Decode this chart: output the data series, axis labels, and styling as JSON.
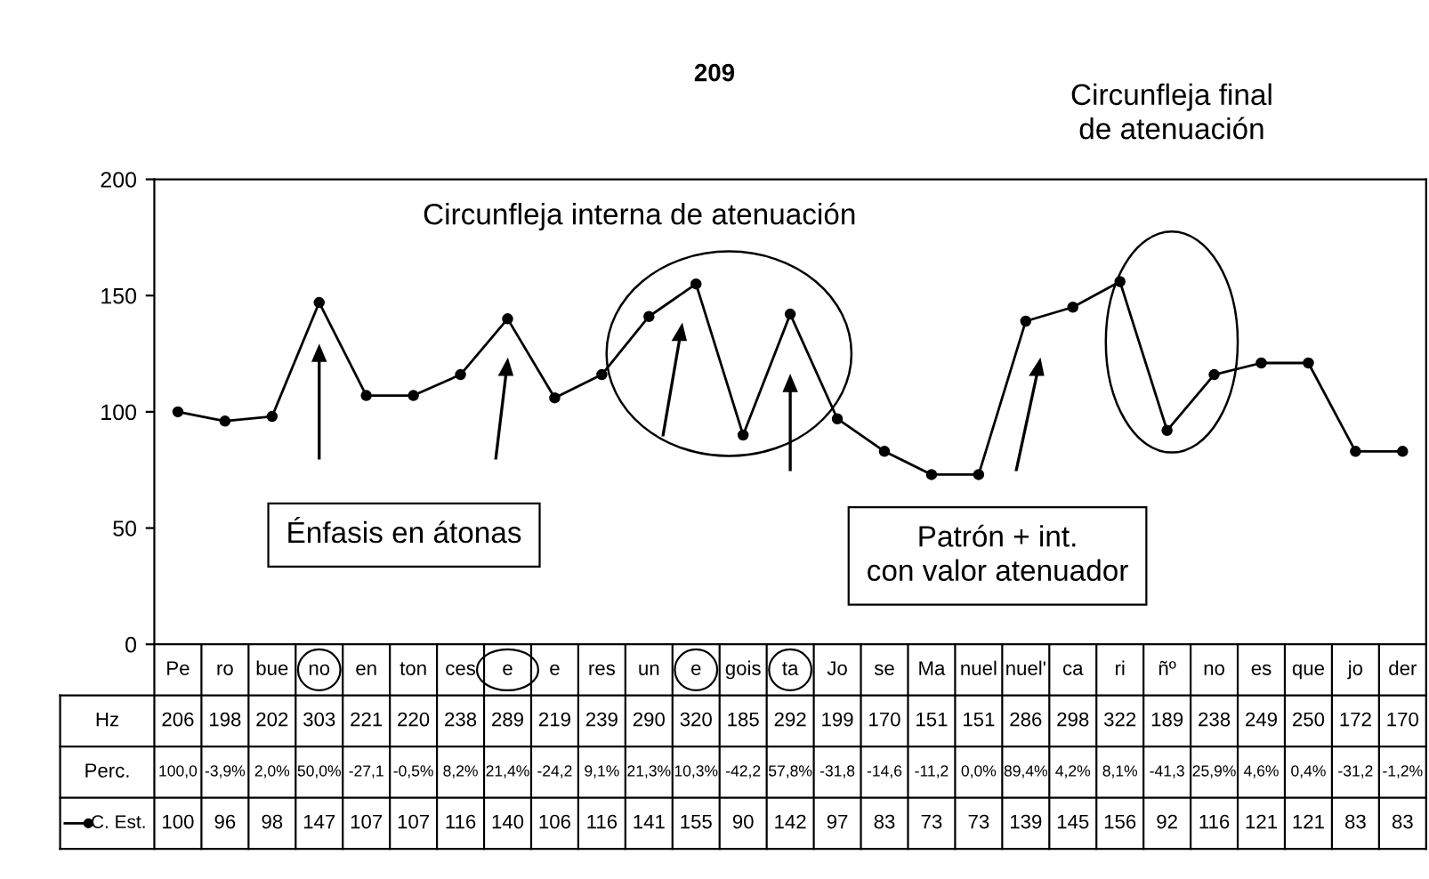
{
  "chart_data": {
    "type": "line",
    "categories": [
      "Pe",
      "ro",
      "bue",
      "no",
      "en",
      "ton",
      "ces",
      "e",
      "e",
      "res",
      "un",
      "e",
      "gois",
      "ta",
      "Jo",
      "se",
      "Ma",
      "nuel",
      "nuel'",
      "ca",
      "ri",
      "ñº",
      "no",
      "es",
      "que",
      "jo",
      "der"
    ],
    "series": [
      {
        "name": "C. Est.",
        "color": "#000000",
        "values": [
          100,
          96,
          98,
          147,
          107,
          107,
          116,
          140,
          106,
          116,
          141,
          155,
          90,
          142,
          97,
          83,
          73,
          73,
          139,
          145,
          156,
          92,
          116,
          121,
          121,
          83,
          83
        ]
      }
    ],
    "data_labels": true,
    "ylim": [
      0,
      200
    ],
    "yticks": [
      0,
      50,
      100,
      150,
      200
    ],
    "marker": "circle",
    "line_style": "solid",
    "grid": false,
    "legend": "bottom left",
    "annotations": [
      "209",
      "Circunfleja interna de atenuación",
      "Énfasis en átonas",
      "Patrón + int.\ncon valor atenuador",
      "Circunfleja final\nde atenuación",
      "Hz",
      "206",
      "198",
      "202",
      "303",
      "221",
      "220",
      "238",
      "289",
      "219",
      "239",
      "290",
      "320",
      "185",
      "292",
      "199",
      "170",
      "151",
      "151",
      "286",
      "298",
      "322",
      "189",
      "238",
      "249",
      "250",
      "172",
      "170",
      "Perc.",
      "100,0",
      "-3,9%",
      "2,0%",
      "50,0%",
      "-27,1",
      "-0,5%",
      "8,2%",
      "21,4%",
      "-24,2",
      "9,1%",
      "21,3%",
      "10,3%",
      "-42,2",
      "57,8%",
      "-31,8",
      "-14,6",
      "-11,2",
      "0,0%",
      "89,4%",
      "4,2%",
      "8,1%",
      "-41,3",
      "25,9%",
      "4,6%",
      "0,4%",
      "-31,2",
      "-1,2%"
    ]
  }
}
